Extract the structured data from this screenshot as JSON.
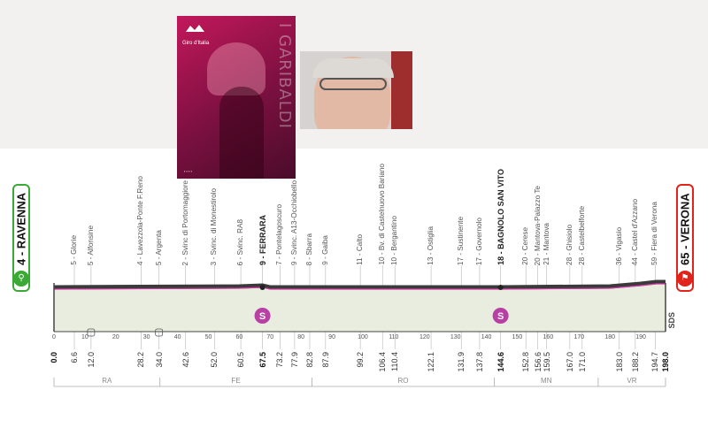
{
  "photos": {
    "poster": {
      "logo_text": "Giro d'Italia",
      "side_text": "I GARIBALDI"
    },
    "portrait": {
      "subject": "man with glasses"
    }
  },
  "profile": {
    "start": {
      "label": "4 - RAVENNA",
      "icon": "bicycle-icon",
      "color": "#3aa935"
    },
    "finish": {
      "label": "65 - VERONA",
      "icon": "finish-flag-icon",
      "color": "#e2231a"
    },
    "total_km": "198.0",
    "sds_label": "SDS",
    "sprint_icon_label": "S",
    "colors": {
      "line": "#3a3a3a",
      "fill": "#e9ede0",
      "accent": "#d63aa9"
    },
    "places": [
      {
        "km": 6.6,
        "label": "5 - Glorie",
        "km_label": "6.6"
      },
      {
        "km": 12.0,
        "label": "5 - Alfonsine",
        "km_label": "12.0"
      },
      {
        "km": 28.2,
        "label": "4 - Lavezzola-Ponte F.Reno",
        "km_label": "28.2"
      },
      {
        "km": 34.0,
        "label": "5 - Argenta",
        "km_label": "34.0"
      },
      {
        "km": 42.6,
        "label": "2 - Svinc di Portomaggiore",
        "km_label": "42.6"
      },
      {
        "km": 52.0,
        "label": "3 - Svinc. di Monestirolo",
        "km_label": "52.0"
      },
      {
        "km": 60.5,
        "label": "6 - Svinc. RA8",
        "km_label": "60.5"
      },
      {
        "km": 67.5,
        "label": "9 - FERRARA",
        "km_label": "67.5",
        "bold": true
      },
      {
        "km": 73.2,
        "label": "7 - Pontelagoscuro",
        "km_label": "73.2"
      },
      {
        "km": 77.9,
        "label": "9 - Svinc. A13-Occhiobello",
        "km_label": "77.9"
      },
      {
        "km": 82.8,
        "label": "8 - Sbarra",
        "km_label": "82.8"
      },
      {
        "km": 87.9,
        "label": "9 - Gaiba",
        "km_label": "87.9"
      },
      {
        "km": 99.2,
        "label": "11 - Calto",
        "km_label": "99.2"
      },
      {
        "km": 106.4,
        "label": "10 - Bv. di Castelnuovo Bariano",
        "km_label": "106.4"
      },
      {
        "km": 110.4,
        "label": "10 - Bergantino",
        "km_label": "110.4"
      },
      {
        "km": 122.1,
        "label": "13 - Ostiglia",
        "km_label": "122.1"
      },
      {
        "km": 131.9,
        "label": "17 - Sustinente",
        "km_label": "131.9"
      },
      {
        "km": 137.8,
        "label": "17 - Governolo",
        "km_label": "137.8"
      },
      {
        "km": 144.6,
        "label": "18 - BAGNOLO SAN VITO",
        "km_label": "144.6",
        "bold": true
      },
      {
        "km": 152.8,
        "label": "20 - Cerese",
        "km_label": "152.8"
      },
      {
        "km": 156.6,
        "label": "20 - Mantova-Palazzo Te",
        "km_label": "156.6"
      },
      {
        "km": 159.5,
        "label": "21 - Mantova",
        "km_label": "159.5"
      },
      {
        "km": 167.0,
        "label": "28 - Ghisiolo",
        "km_label": "167.0"
      },
      {
        "km": 171.0,
        "label": "28 - Castelbelforte",
        "km_label": "171.0"
      },
      {
        "km": 183.0,
        "label": "36 - Vigasio",
        "km_label": "183.0"
      },
      {
        "km": 188.2,
        "label": "44 - Castel d'Azzano",
        "km_label": "188.2"
      },
      {
        "km": 194.7,
        "label": "59 - Fiera di Verona",
        "km_label": "194.7"
      }
    ],
    "km_ticks": [
      "0",
      "10",
      "20",
      "30",
      "40",
      "50",
      "60",
      "70",
      "80",
      "90",
      "100",
      "110",
      "120",
      "130",
      "140",
      "150",
      "160",
      "170",
      "180",
      "190"
    ],
    "regions": [
      "RA",
      "FE",
      "RO",
      "MN",
      "VR"
    ],
    "sprints": [
      {
        "km": 67.5
      },
      {
        "km": 144.6
      }
    ]
  }
}
